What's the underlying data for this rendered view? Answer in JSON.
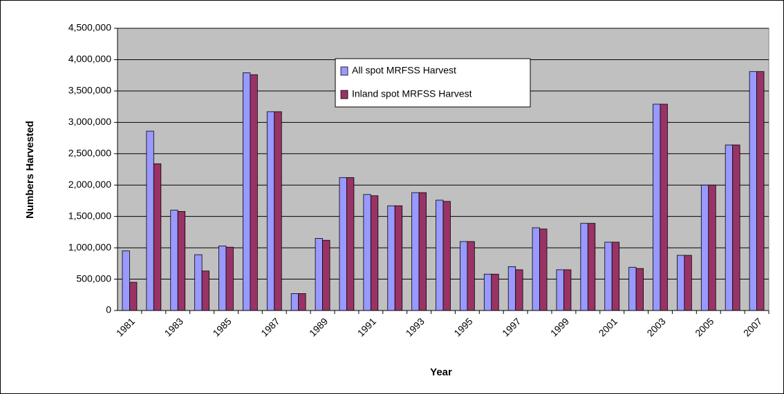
{
  "chart_data": {
    "type": "bar",
    "x_label": "Year",
    "y_label": "Numbers Harvested",
    "categories": [
      "1981",
      null,
      "1983",
      null,
      "1985",
      null,
      "1987",
      null,
      "1989",
      null,
      "1991",
      null,
      "1993",
      null,
      "1995",
      null,
      "1997",
      null,
      "1999",
      null,
      "2001",
      null,
      "2003",
      null,
      "2005",
      null,
      "2007"
    ],
    "series": [
      {
        "name": "All spot MRFSS Harvest",
        "color": "#9999ff",
        "values": [
          950000,
          2860000,
          1600000,
          890000,
          1030000,
          3790000,
          3170000,
          270000,
          1150000,
          2120000,
          1850000,
          1670000,
          1880000,
          1760000,
          1100000,
          580000,
          700000,
          1320000,
          650000,
          1390000,
          1090000,
          690000,
          3290000,
          880000,
          2000000,
          2640000,
          3810000
        ]
      },
      {
        "name": "Inland spot MRFSS Harvest",
        "color": "#993366",
        "values": [
          450000,
          2340000,
          1580000,
          630000,
          1010000,
          3760000,
          3170000,
          270000,
          1120000,
          2120000,
          1830000,
          1670000,
          1880000,
          1740000,
          1100000,
          580000,
          650000,
          1300000,
          650000,
          1390000,
          1090000,
          670000,
          3290000,
          880000,
          2000000,
          2640000,
          3810000
        ]
      }
    ],
    "ylim": [
      0,
      4500000
    ],
    "yticks": [
      0,
      {
        "value": 500000,
        "label": "500,000"
      },
      {
        "value": 1000000,
        "label": "1,000,000"
      },
      {
        "value": 1500000,
        "label": "1,500,000"
      },
      {
        "value": 2000000,
        "label": "2,000,000"
      },
      {
        "value": 2500000,
        "label": "2,500,000"
      },
      {
        "value": 3000000,
        "label": "3,000,000"
      },
      {
        "value": 3500000,
        "label": "3,500,000"
      },
      {
        "value": 4000000,
        "label": "4,000,000"
      },
      {
        "value": 4500000,
        "label": "4,500,000"
      }
    ],
    "grid": true,
    "plot_background": "#c0c0c0",
    "legend_position": "top-center"
  }
}
